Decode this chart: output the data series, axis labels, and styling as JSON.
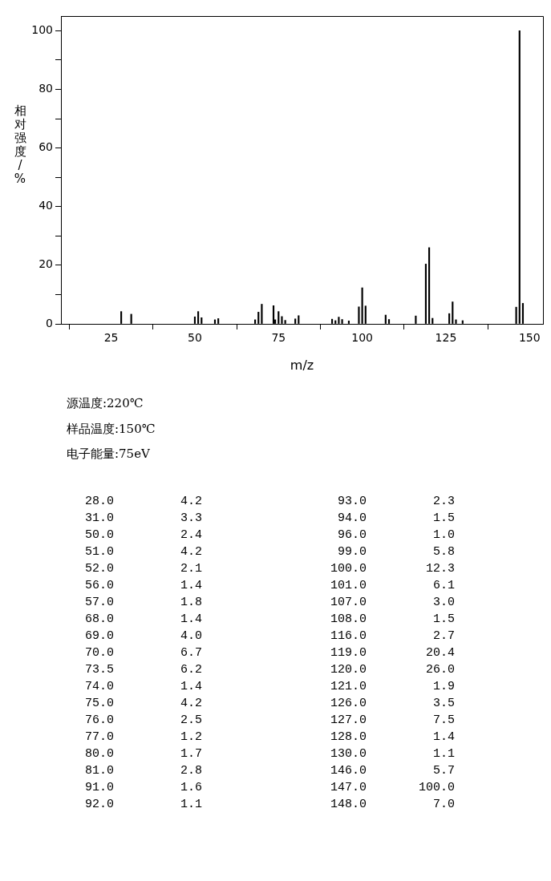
{
  "chart_data": {
    "type": "bar",
    "xlabel": "m/z",
    "ylabel": "相对强度/%",
    "annotations": [
      "源温度:220℃",
      "样品温度:150℃",
      "电子能量:75eV",
      "28.0",
      "4.2",
      "93.0",
      "2.3",
      "31.0",
      "3.3",
      "94.0",
      "1.5",
      "50.0",
      "2.4",
      "96.0",
      "1.0",
      "51.0",
      "4.2",
      "99.0",
      "5.8",
      "52.0",
      "2.1",
      "100.0",
      "12.3",
      "56.0",
      "1.4",
      "101.0",
      "6.1",
      "57.0",
      "1.8",
      "107.0",
      "3.0",
      "68.0",
      "1.4",
      "108.0",
      "1.5",
      "69.0",
      "4.0",
      "116.0",
      "2.7",
      "70.0",
      "6.7",
      "119.0",
      "20.4",
      "73.5",
      "6.2",
      "120.0",
      "26.0",
      "74.0",
      "1.4",
      "121.0",
      "1.9",
      "75.0",
      "4.2",
      "126.0",
      "3.5",
      "76.0",
      "2.5",
      "127.0",
      "7.5",
      "77.0",
      "1.2",
      "128.0",
      "1.4",
      "80.0",
      "1.7",
      "130.0",
      "1.1",
      "81.0",
      "2.8",
      "146.0",
      "5.7",
      "91.0",
      "1.6",
      "147.0",
      "100.0",
      "92.0",
      "1.1",
      "148.0",
      "7.0"
    ],
    "x": [
      28,
      31,
      50,
      51,
      52,
      56,
      57,
      68,
      69,
      70,
      73.5,
      74,
      75,
      76,
      77,
      80,
      81,
      91,
      92,
      93,
      94,
      96,
      99,
      100,
      101,
      107,
      108,
      116,
      119,
      120,
      121,
      126,
      127,
      128,
      130,
      146,
      147,
      148
    ],
    "values": [
      4.2,
      3.3,
      2.4,
      4.2,
      2.1,
      1.4,
      1.8,
      1.4,
      4.0,
      6.7,
      6.2,
      1.4,
      4.2,
      2.5,
      1.2,
      1.7,
      2.8,
      1.6,
      1.1,
      2.3,
      1.5,
      1.0,
      5.8,
      12.3,
      6.1,
      3.0,
      1.5,
      2.7,
      20.4,
      26.0,
      1.9,
      3.5,
      7.5,
      1.4,
      1.1,
      5.7,
      100.0,
      7.0
    ],
    "color": "#000000",
    "xlim": [
      10,
      154
    ],
    "xticks": [
      25,
      50,
      75,
      100,
      125,
      150
    ],
    "ylim": [
      0,
      105
    ],
    "yticks": [
      0,
      {
        "value": 10,
        "label": null
      },
      20,
      {
        "value": 30,
        "label": null
      },
      40,
      {
        "value": 50,
        "label": null
      },
      60,
      {
        "value": 70,
        "label": null
      },
      80,
      {
        "value": 90,
        "label": null
      },
      100
    ],
    "grid": false,
    "legend": false
  }
}
